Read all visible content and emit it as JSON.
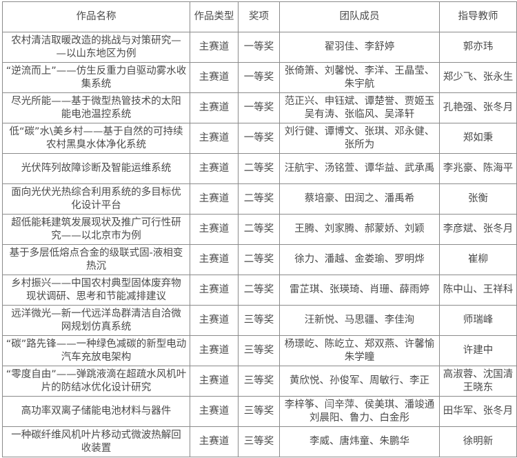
{
  "headers": [
    "作品名称",
    "作品类型",
    "奖项",
    "团队成员",
    "指导教师"
  ],
  "rows": [
    {
      "name": [
        "农村清洁取暖改造的挑战与对策研究—",
        "—以山东地区为例"
      ],
      "type": "主赛道",
      "award": "一等奖",
      "members": [
        "翟羽佳、李舒婷"
      ],
      "advisor": [
        "郭亦玮"
      ]
    },
    {
      "name": [
        "“逆流而上”——仿生反重力自驱动雾水收",
        "集系统"
      ],
      "type": "主赛道",
      "award": "一等奖",
      "members": [
        "张倚箫、刘馨悦、李洋、王晶莹、",
        "朱宇航"
      ],
      "advisor": [
        "郑少飞、张永生"
      ]
    },
    {
      "name": [
        "尽光所能——基于微型热管技术的太阳",
        "能电池温控系统"
      ],
      "type": "主赛道",
      "award": "一等奖",
      "members": [
        "范正兴、申钰斌、谭楚誉、贾姬玉",
        "吴有涛、张临风、吴泽轩"
      ],
      "advisor": [
        "孔艳强、张冬月"
      ]
    },
    {
      "name": [
        "低“碳”水\\美乡村——基于自然的可持续",
        "农村黑臭水体净化系统"
      ],
      "type": "主赛道",
      "award": "一等奖",
      "members": [
        "刘行健、谭博文、张琪、邓永健、",
        "张所为"
      ],
      "advisor": [
        "郑如秉"
      ]
    },
    {
      "name": [
        "光伏阵列故障诊断及智能运维系统"
      ],
      "type": "主赛道",
      "award": "二等奖",
      "members": [
        "汪航宇、汤铭萱、谭华益、武承禹"
      ],
      "advisor": [
        "李兆豪、陈海平"
      ]
    },
    {
      "name": [
        "面向光伏光热综合利用系统的多目标优",
        "化设计平台"
      ],
      "type": "主赛道",
      "award": "二等奖",
      "members": [
        "蔡培豪、田润之、潘禹希"
      ],
      "advisor": [
        "张衡"
      ]
    },
    {
      "name": [
        "超低能耗建筑发展现状及推广可行性研",
        "究——以北京市为例"
      ],
      "type": "主赛道",
      "award": "二等奖",
      "members": [
        "王腾、刘家腾、郝蒙娇、刘颖"
      ],
      "advisor": [
        "李彦斌、张冬月"
      ]
    },
    {
      "name": [
        "基于多层低熔点合金的级联式固-液相变",
        "热沉"
      ],
      "type": "主赛道",
      "award": "二等奖",
      "members": [
        "徐力、潘越、金娄瑜、罗明烨"
      ],
      "advisor": [
        "崔柳"
      ]
    },
    {
      "name": [
        "乡村振兴——中国农村典型固体废弃物",
        "现状调研、思考和节能减排建议"
      ],
      "type": "主赛道",
      "award": "二等奖",
      "members": [
        "雷芷琪、张瑛琦、肖珊、薛雨婷"
      ],
      "advisor": [
        "陈中山、王祥科"
      ]
    },
    {
      "name": [
        "远洋微光—新一代远洋岛群清洁自洽微",
        "网规划仿真系统"
      ],
      "type": "主赛道",
      "award": "三等奖",
      "members": [
        "汪新悦、马思疆、李佳洵"
      ],
      "advisor": [
        "师瑞峰"
      ]
    },
    {
      "name": [
        "“碳”路先锋——一种绿色减碳的新型电动",
        "汽车充放电架构"
      ],
      "type": "主赛道",
      "award": "三等奖",
      "members": [
        "杨璟屹、陈屹立、郑双燕、许馨愉",
        "朱学瞳"
      ],
      "advisor": [
        "许建中"
      ]
    },
    {
      "name": [
        "“零度自由”——弹跳液滴在超疏水风机叶",
        "片的防结冰优化设计研究"
      ],
      "type": "主赛道",
      "award": "三等奖",
      "members": [
        "黄欣悦、孙俊军、周敏行、李正"
      ],
      "advisor": [
        "高淑蓉、沈国清",
        "王晓东"
      ]
    },
    {
      "name": [
        "高功率双离子储能电池材料与器件"
      ],
      "type": "主赛道",
      "award": "三等奖",
      "members": [
        "李梓筝、闫辛萍、侯美琪、潘竣通",
        "刘晨阳、鲁力、白金彤"
      ],
      "advisor": [
        "田华军、张冬月"
      ]
    },
    {
      "name": [
        "一种碳纤维风机叶片移动式微波热解回",
        "收装置"
      ],
      "type": "主赛道",
      "award": "三等奖",
      "members": [
        "李威、唐炜童、朱鹏华"
      ],
      "advisor": [
        "徐明新"
      ]
    }
  ]
}
